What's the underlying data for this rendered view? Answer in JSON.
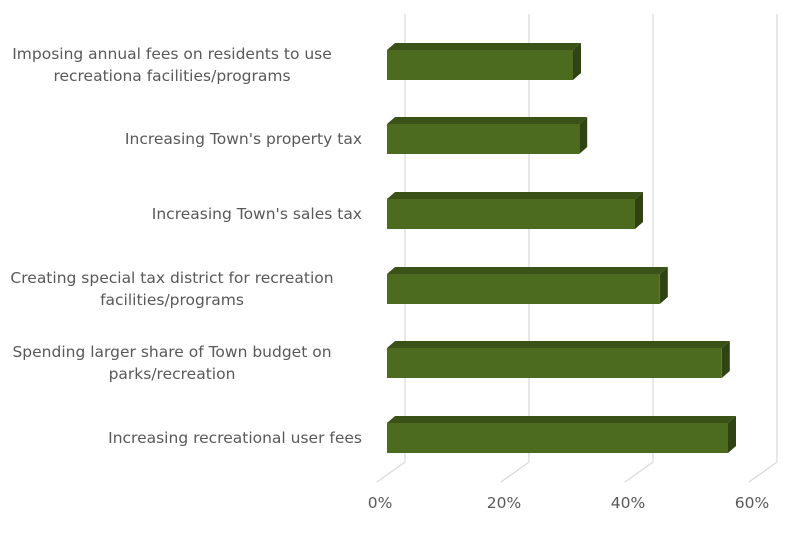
{
  "chart_data": {
    "type": "bar",
    "orientation": "horizontal",
    "style": "3d-clustered-bar",
    "title": "",
    "xlabel": "",
    "ylabel": "",
    "categories": [
      "Imposing annual fees on residents to use recreationa facilities/programs",
      "Increasing Town's property tax",
      "Increasing Town's sales tax",
      "Creating special tax district for recreation facilities/programs",
      "Spending larger share of Town budget on parks/recreation",
      "Increasing recreational user fees"
    ],
    "values": [
      30,
      31,
      40,
      44,
      54,
      55
    ],
    "value_unit": "%",
    "xlim": [
      0,
      60
    ],
    "x_ticks": [
      "0%",
      "20%",
      "40%",
      "60%"
    ],
    "grid": true,
    "legend": null,
    "bar_color": "#4d6b1f"
  },
  "labels": [
    {
      "lines": [
        "Imposing annual fees on residents to use",
        "recreationa facilities/programs"
      ]
    },
    {
      "lines": [
        "Increasing Town's property tax"
      ]
    },
    {
      "lines": [
        "Increasing Town's sales tax"
      ]
    },
    {
      "lines": [
        "Creating special tax district for recreation",
        "facilities/programs"
      ]
    },
    {
      "lines": [
        "Spending larger share of Town budget on",
        "parks/recreation"
      ]
    },
    {
      "lines": [
        "Increasing recreational user fees"
      ]
    }
  ]
}
